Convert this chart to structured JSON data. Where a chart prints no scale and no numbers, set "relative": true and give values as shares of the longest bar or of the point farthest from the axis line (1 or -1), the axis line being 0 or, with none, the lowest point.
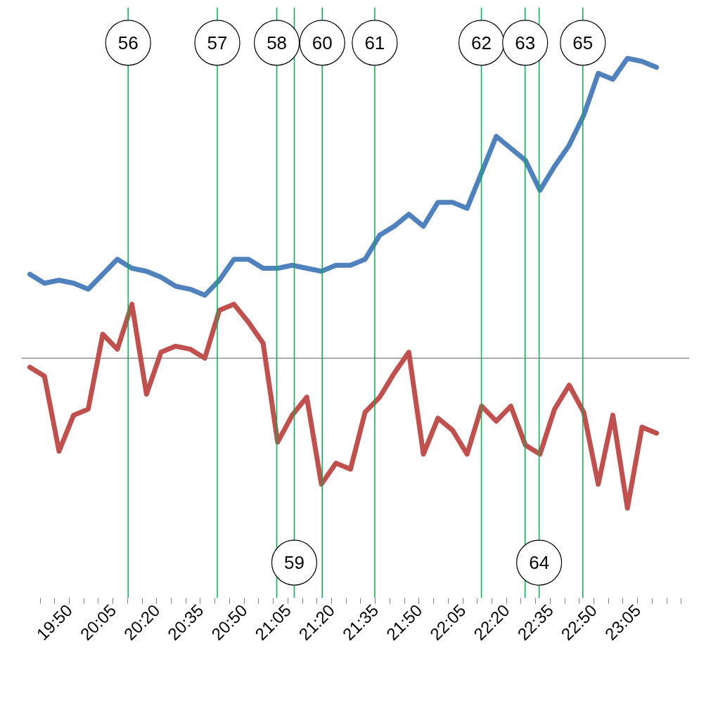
{
  "chart_data": {
    "type": "line",
    "relative": true,
    "grid": false,
    "marker": "none",
    "line_style": "solid",
    "x": [
      19.6083,
      19.6917,
      19.775,
      19.8583,
      19.9417,
      20.025,
      20.1083,
      20.1917,
      20.275,
      20.3583,
      20.4417,
      20.525,
      20.6083,
      20.6917,
      20.775,
      20.8583,
      20.9417,
      21.025,
      21.1083,
      21.1917,
      21.275,
      21.3583,
      21.4417,
      21.525,
      21.6083,
      21.6917,
      21.775,
      21.8583,
      21.9417,
      22.025,
      22.1083,
      22.1917,
      22.275,
      22.3583,
      22.4417,
      22.525,
      22.6083,
      22.6917,
      22.775,
      22.8583,
      22.9417,
      23.025,
      23.1083,
      23.1917
    ],
    "xlim": [
      19.56,
      23.38
    ],
    "xticks": [
      {
        "value": 19.8333,
        "label": "19:50"
      },
      {
        "value": 20.0833,
        "label": "20:05"
      },
      {
        "value": 20.3333,
        "label": "20:20"
      },
      {
        "value": 20.5833,
        "label": "20:35"
      },
      {
        "value": 20.8333,
        "label": "20:50"
      },
      {
        "value": 21.0833,
        "label": "21:05"
      },
      {
        "value": 21.3333,
        "label": "21:20"
      },
      {
        "value": 21.5833,
        "label": "21:35"
      },
      {
        "value": 21.8333,
        "label": "21:50"
      },
      {
        "value": 22.0833,
        "label": "22:05"
      },
      {
        "value": 22.3333,
        "label": "22:20"
      },
      {
        "value": 22.5833,
        "label": "22:35"
      },
      {
        "value": 22.8333,
        "label": "22:50"
      },
      {
        "value": 23.0833,
        "label": "23:05"
      }
    ],
    "series": [
      {
        "color": "#4f81bd",
        "values": [
          0.28,
          0.25,
          0.26,
          0.25,
          0.23,
          0.28,
          0.33,
          0.3,
          0.29,
          0.27,
          0.24,
          0.23,
          0.21,
          0.26,
          0.33,
          0.33,
          0.3,
          0.3,
          0.31,
          0.3,
          0.29,
          0.31,
          0.31,
          0.33,
          0.41,
          0.44,
          0.48,
          0.44,
          0.52,
          0.52,
          0.5,
          0.62,
          0.74,
          0.7,
          0.66,
          0.56,
          0.64,
          0.71,
          0.81,
          0.95,
          0.93,
          1.0,
          0.99,
          0.97
        ]
      },
      {
        "color": "#c0504d",
        "values": [
          -0.03,
          -0.06,
          -0.31,
          -0.19,
          -0.17,
          0.08,
          0.03,
          0.18,
          -0.12,
          0.02,
          0.04,
          0.03,
          0.0,
          0.16,
          0.18,
          0.12,
          0.05,
          -0.28,
          -0.19,
          -0.13,
          -0.42,
          -0.35,
          -0.37,
          -0.18,
          -0.13,
          -0.05,
          0.02,
          -0.32,
          -0.2,
          -0.24,
          -0.32,
          -0.16,
          -0.21,
          -0.16,
          -0.29,
          -0.32,
          -0.17,
          -0.09,
          -0.18,
          -0.42,
          -0.19,
          -0.5,
          -0.23,
          -0.25
        ]
      }
    ],
    "ref_lines": [
      {
        "axis": "x",
        "value": 20.17,
        "color": "#00b050"
      },
      {
        "axis": "x",
        "value": 20.68,
        "color": "#00b050"
      },
      {
        "axis": "x",
        "value": 21.02,
        "color": "#00b050"
      },
      {
        "axis": "x",
        "value": 21.12,
        "color": "#00b050"
      },
      {
        "axis": "x",
        "value": 21.28,
        "color": "#00b050"
      },
      {
        "axis": "x",
        "value": 21.58,
        "color": "#00b050"
      },
      {
        "axis": "x",
        "value": 22.19,
        "color": "#00b050"
      },
      {
        "axis": "x",
        "value": 22.44,
        "color": "#00b050"
      },
      {
        "axis": "x",
        "value": 22.52,
        "color": "#00b050"
      },
      {
        "axis": "x",
        "value": 22.77,
        "color": "#00b050"
      }
    ],
    "annotations": [
      {
        "text": "56",
        "x": 20.17
      },
      {
        "text": "57",
        "x": 20.68
      },
      {
        "text": "58",
        "x": 21.02
      },
      {
        "text": "59",
        "x": 21.12
      },
      {
        "text": "60",
        "x": 21.28
      },
      {
        "text": "61",
        "x": 21.58
      },
      {
        "text": "62",
        "x": 22.19
      },
      {
        "text": "63",
        "x": 22.44
      },
      {
        "text": "64",
        "x": 22.52
      },
      {
        "text": "65",
        "x": 22.77
      }
    ]
  }
}
